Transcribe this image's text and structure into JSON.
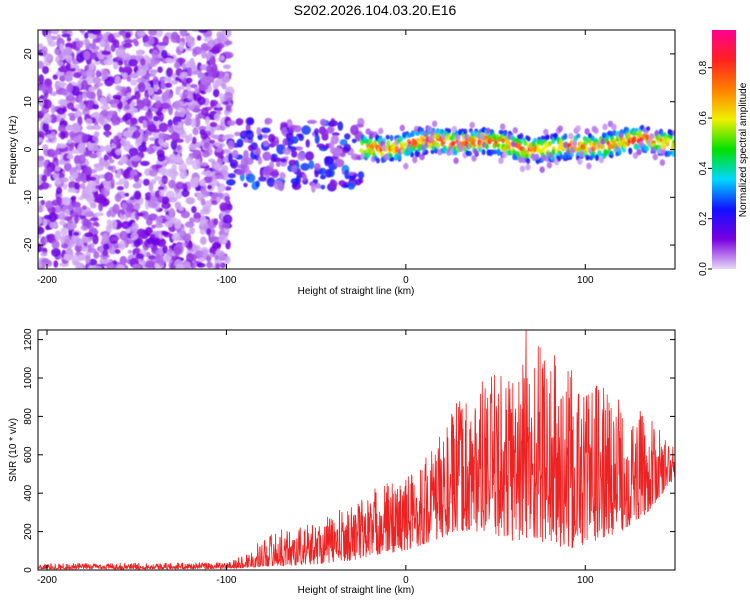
{
  "title": "S202.2026.104.03.20.E16",
  "colors": {
    "plot_bg": "#ffffff",
    "snr_line": "#ee2222",
    "axis": "#000000"
  },
  "chart_data": [
    {
      "type": "heatmap",
      "title": "S202.2026.104.03.20.E16",
      "xlabel": "Height of straight line (km)",
      "ylabel": "Frequency (Hz)",
      "xlim": [
        -205,
        150
      ],
      "ylim": [
        -25,
        25
      ],
      "xticks": [
        -200,
        -100,
        0,
        100
      ],
      "xtick_labels": [
        "-200",
        "-100",
        "0",
        "100"
      ],
      "yticks": [
        -20,
        -10,
        0,
        10,
        20
      ],
      "ytick_labels": [
        "-20",
        "-10",
        "0",
        "10",
        "20"
      ],
      "colorbar": {
        "label": "Normalized spectral amplitude",
        "range": [
          0,
          0.95
        ],
        "ticks": [
          0.0,
          0.2,
          0.4,
          0.6,
          0.8
        ],
        "tick_labels": [
          "0.0",
          "0.2",
          "0.4",
          "0.6",
          "0.8"
        ],
        "colormap": "rainbow",
        "stops": [
          "#e8d8f8",
          "#7a00e0",
          "#1010ff",
          "#00d8ff",
          "#00e000",
          "#f0f000",
          "#ff8000",
          "#ff2020",
          "#ff0090"
        ]
      },
      "regions": [
        {
          "x_range": [
            -205,
            -98
          ],
          "freq_range": [
            -25,
            25
          ],
          "amplitude": [
            0.02,
            0.15
          ],
          "description_level": "noise"
        },
        {
          "x_range": [
            -98,
            -25
          ],
          "freq_range": [
            -8,
            6
          ],
          "amplitude": [
            0.05,
            0.3
          ]
        },
        {
          "x_range": [
            -25,
            150
          ],
          "freq_center": 1,
          "freq_halfwidth": 2.5,
          "amplitude": [
            0.2,
            0.95
          ]
        }
      ]
    },
    {
      "type": "line",
      "title": "",
      "xlabel": "Height of straight line (km)",
      "ylabel": "SNR (10 * v/v)",
      "xlim": [
        -205,
        150
      ],
      "ylim": [
        0,
        1250
      ],
      "xticks": [
        -200,
        -100,
        0,
        100
      ],
      "xtick_labels": [
        "-200",
        "-100",
        "0",
        "100"
      ],
      "yticks": [
        0,
        200,
        400,
        600,
        800,
        1000,
        1200
      ],
      "ytick_labels": [
        "0",
        "200",
        "400",
        "600",
        "800",
        "1000",
        "1200"
      ],
      "series": [
        {
          "name": "SNR",
          "color": "#ee2222",
          "envelope_x": [
            -205,
            -100,
            -90,
            -75,
            -65,
            -50,
            -30,
            -15,
            0,
            15,
            30,
            45,
            60,
            75,
            90,
            105,
            120,
            135,
            150
          ],
          "envelope_min": [
            5,
            5,
            10,
            20,
            20,
            30,
            50,
            80,
            100,
            150,
            200,
            200,
            150,
            150,
            100,
            150,
            200,
            300,
            480
          ],
          "envelope_max": [
            35,
            40,
            80,
            200,
            220,
            250,
            350,
            450,
            500,
            650,
            900,
            1000,
            1100,
            1250,
            1050,
            1000,
            900,
            800,
            640
          ],
          "peak": {
            "x": 67,
            "y": 1250
          }
        }
      ]
    }
  ]
}
